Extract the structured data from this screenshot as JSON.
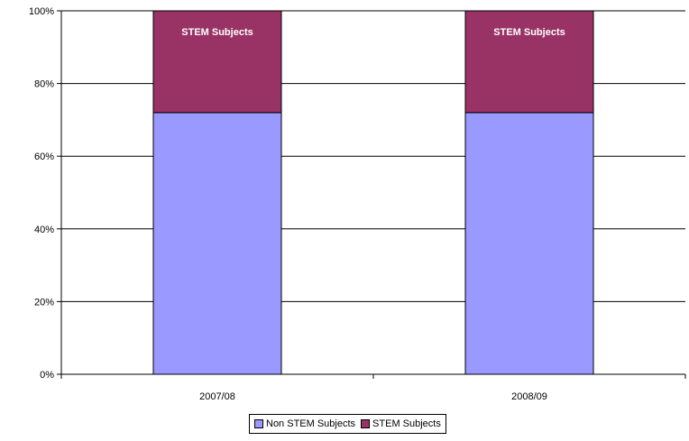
{
  "chart_data": {
    "type": "bar",
    "stacked": true,
    "percent": true,
    "categories": [
      "2007/08",
      "2008/09"
    ],
    "series": [
      {
        "name": "Non STEM Subjects",
        "values": [
          72,
          72
        ],
        "color": "#9999ff"
      },
      {
        "name": "STEM Subjects",
        "values": [
          28,
          28
        ],
        "color": "#993366",
        "bar_label": "STEM Subjects"
      }
    ],
    "y_ticks": [
      "0%",
      "20%",
      "40%",
      "60%",
      "80%",
      "100%"
    ],
    "ylim": [
      0,
      100
    ],
    "grid": true,
    "legend": "bottom"
  }
}
